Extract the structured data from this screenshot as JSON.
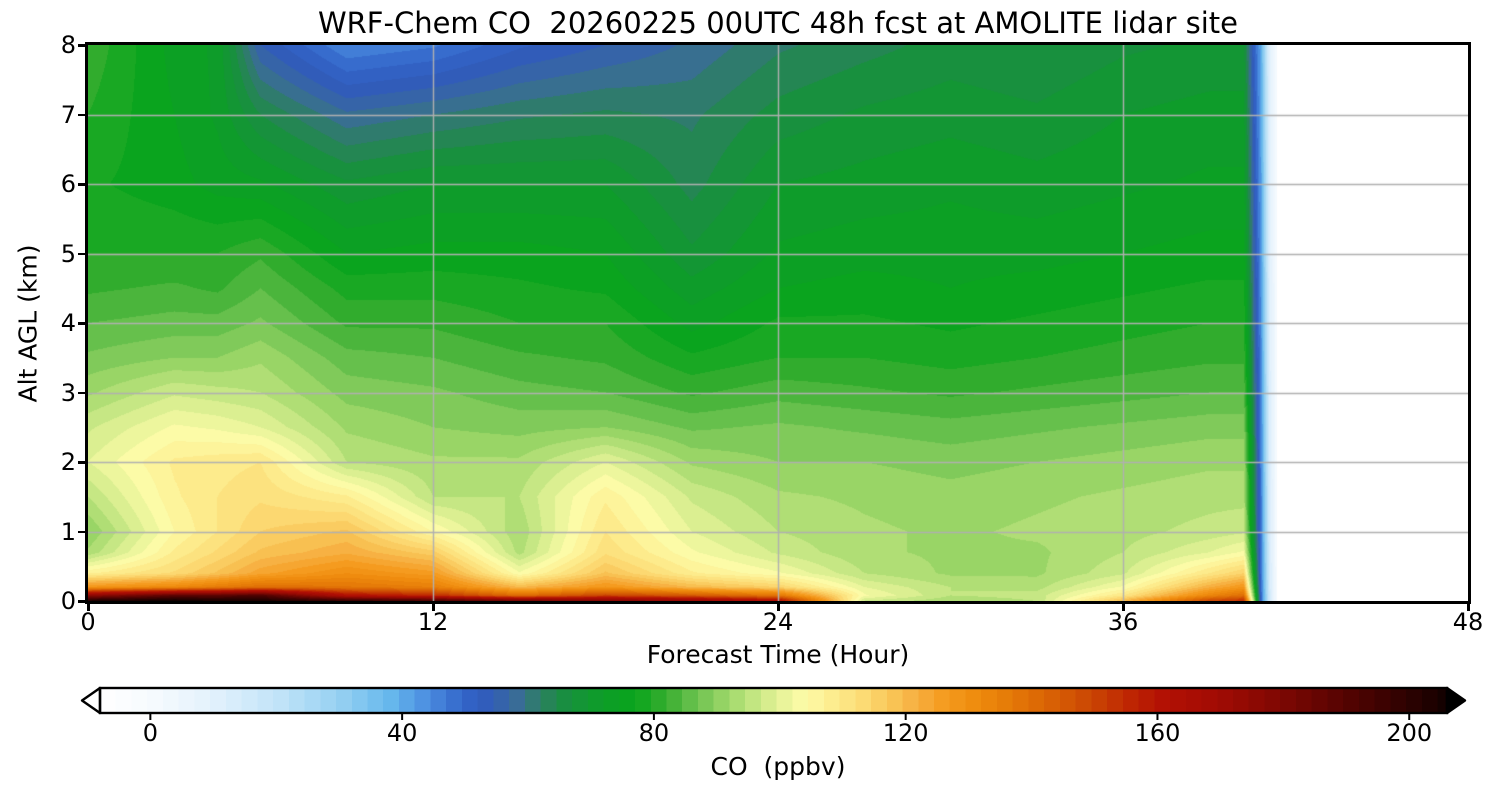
{
  "chart_data": {
    "type": "heatmap",
    "title": "WRF-Chem CO  20260225 00UTC 48h fcst at AMOLITE lidar site",
    "xlabel": "Forecast Time (Hour)",
    "ylabel": "Alt AGL (km)",
    "colorbar_label": "CO  (ppbv)",
    "xlim": [
      0,
      48
    ],
    "ylim": [
      0,
      8
    ],
    "x_ticks": [
      0,
      12,
      24,
      36,
      48
    ],
    "y_ticks": [
      0,
      1,
      2,
      3,
      4,
      5,
      6,
      7,
      8
    ],
    "grid": true,
    "grid_color": "#b0b0b0",
    "colorbar_ticks": [
      0,
      40,
      80,
      120,
      160,
      200
    ],
    "colorbar_range": [
      -8,
      206
    ],
    "band_step_ppbv": 2.5,
    "missing_data_after_hour": 41.35,
    "colormap_stops": [
      [
        -8,
        "#ffffff"
      ],
      [
        0,
        "#f6fbfe"
      ],
      [
        10,
        "#e2f1fc"
      ],
      [
        20,
        "#c3e4f8"
      ],
      [
        30,
        "#96d0f2"
      ],
      [
        38,
        "#67b9ec"
      ],
      [
        44,
        "#4b8ee0"
      ],
      [
        50,
        "#3263c8"
      ],
      [
        54,
        "#315cb8"
      ],
      [
        58,
        "#3a6b9b"
      ],
      [
        62,
        "#2d7f62"
      ],
      [
        66,
        "#188f3f"
      ],
      [
        71,
        "#0e9c2b"
      ],
      [
        77,
        "#09a51c"
      ],
      [
        82,
        "#38ad30"
      ],
      [
        87,
        "#6ec351"
      ],
      [
        92,
        "#a0d86a"
      ],
      [
        97,
        "#cdea88"
      ],
      [
        101,
        "#ecf59c"
      ],
      [
        104,
        "#fdfba8"
      ],
      [
        108,
        "#fdee90"
      ],
      [
        113,
        "#fcdc76"
      ],
      [
        118,
        "#f9c455"
      ],
      [
        122,
        "#f6ad3f"
      ],
      [
        126,
        "#f59c20"
      ],
      [
        131,
        "#ef8c0e"
      ],
      [
        136,
        "#e67c08"
      ],
      [
        141,
        "#dd6905"
      ],
      [
        146,
        "#d25504"
      ],
      [
        151,
        "#c73e03"
      ],
      [
        156,
        "#bd2402"
      ],
      [
        161,
        "#b21004"
      ],
      [
        168,
        "#a50c04"
      ],
      [
        174,
        "#930a03"
      ],
      [
        180,
        "#7c0703"
      ],
      [
        186,
        "#640502"
      ],
      [
        192,
        "#4c0301"
      ],
      [
        198,
        "#340201"
      ],
      [
        204,
        "#1c0100"
      ],
      [
        210,
        "#000000"
      ]
    ],
    "grid_x_hours": [
      0,
      3,
      4.5,
      6,
      9,
      12,
      15,
      18,
      21,
      24,
      27,
      30,
      33,
      36,
      39,
      40.2,
      40.8,
      41.1,
      41.35
    ],
    "grid_y_km": [
      0,
      0.08,
      0.2,
      0.4,
      0.7,
      1.0,
      1.5,
      2.0,
      2.5,
      3.0,
      3.5,
      4.0,
      4.5,
      5.0,
      6.0,
      7.0,
      8.0
    ],
    "values_ppbv": [
      [
        205,
        208,
        206,
        205,
        200,
        195,
        185,
        180,
        175,
        165,
        97,
        93,
        95,
        120,
        150,
        155,
        50,
        15,
        0
      ],
      [
        175,
        188,
        188,
        192,
        162,
        155,
        140,
        150,
        145,
        138,
        103,
        95,
        96,
        110,
        133,
        140,
        50,
        15,
        0
      ],
      [
        128,
        132,
        136,
        140,
        138,
        135,
        120,
        128,
        120,
        115,
        100,
        95,
        94,
        103,
        122,
        128,
        49,
        14,
        0
      ],
      [
        107,
        113,
        118,
        124,
        130,
        126,
        103,
        118,
        108,
        103,
        95,
        92,
        92,
        97,
        110,
        115,
        48,
        14,
        0
      ],
      [
        93,
        108,
        113,
        118,
        122,
        116,
        94,
        112,
        103,
        97,
        93,
        92,
        92,
        95,
        100,
        103,
        48,
        13,
        0
      ],
      [
        90,
        105,
        110,
        115,
        118,
        105,
        93,
        110,
        100,
        95,
        93,
        92,
        93,
        94,
        96,
        97,
        47,
        13,
        0
      ],
      [
        95,
        107,
        110,
        112,
        108,
        95,
        95,
        107,
        97,
        93,
        92,
        91,
        92,
        93,
        94,
        94,
        47,
        13,
        0
      ],
      [
        100,
        108,
        109,
        110,
        95,
        93,
        93,
        100,
        92,
        90,
        90,
        89,
        90,
        91,
        92,
        92,
        46,
        12,
        0
      ],
      [
        97,
        103,
        102,
        100,
        92,
        90,
        89,
        90,
        87,
        88,
        87,
        86,
        87,
        88,
        89,
        89,
        46,
        12,
        0
      ],
      [
        92,
        97,
        96,
        95,
        89,
        88,
        86,
        85,
        82,
        84,
        83,
        82,
        83,
        84,
        85,
        85,
        45,
        12,
        0
      ],
      [
        88,
        90,
        90,
        92,
        86,
        85,
        83,
        82,
        78,
        80,
        80,
        79,
        80,
        81,
        82,
        82,
        45,
        11,
        0
      ],
      [
        85,
        86,
        86,
        88,
        82,
        82,
        80,
        80,
        74,
        78,
        78,
        77,
        78,
        79,
        80,
        80,
        44,
        11,
        0
      ],
      [
        82,
        83,
        82,
        85,
        79,
        79,
        78,
        77,
        71,
        75,
        76,
        75,
        76,
        77,
        78,
        78,
        44,
        11,
        0
      ],
      [
        80,
        80,
        80,
        82,
        75,
        76,
        76,
        75,
        68,
        73,
        74,
        74,
        74,
        75,
        76,
        76,
        43,
        10,
        0
      ],
      [
        78,
        76,
        74,
        73,
        68,
        70,
        70,
        70,
        64,
        70,
        71,
        72,
        71,
        72,
        73,
        73,
        42,
        10,
        0
      ],
      [
        80,
        75,
        72,
        65,
        58,
        60,
        62,
        63,
        62,
        66,
        68,
        69,
        68,
        70,
        71,
        71,
        41,
        10,
        0
      ],
      [
        82,
        74,
        72,
        55,
        45,
        47,
        52,
        55,
        58,
        62,
        64,
        66,
        65,
        67,
        68,
        68,
        40,
        10,
        0
      ]
    ]
  }
}
